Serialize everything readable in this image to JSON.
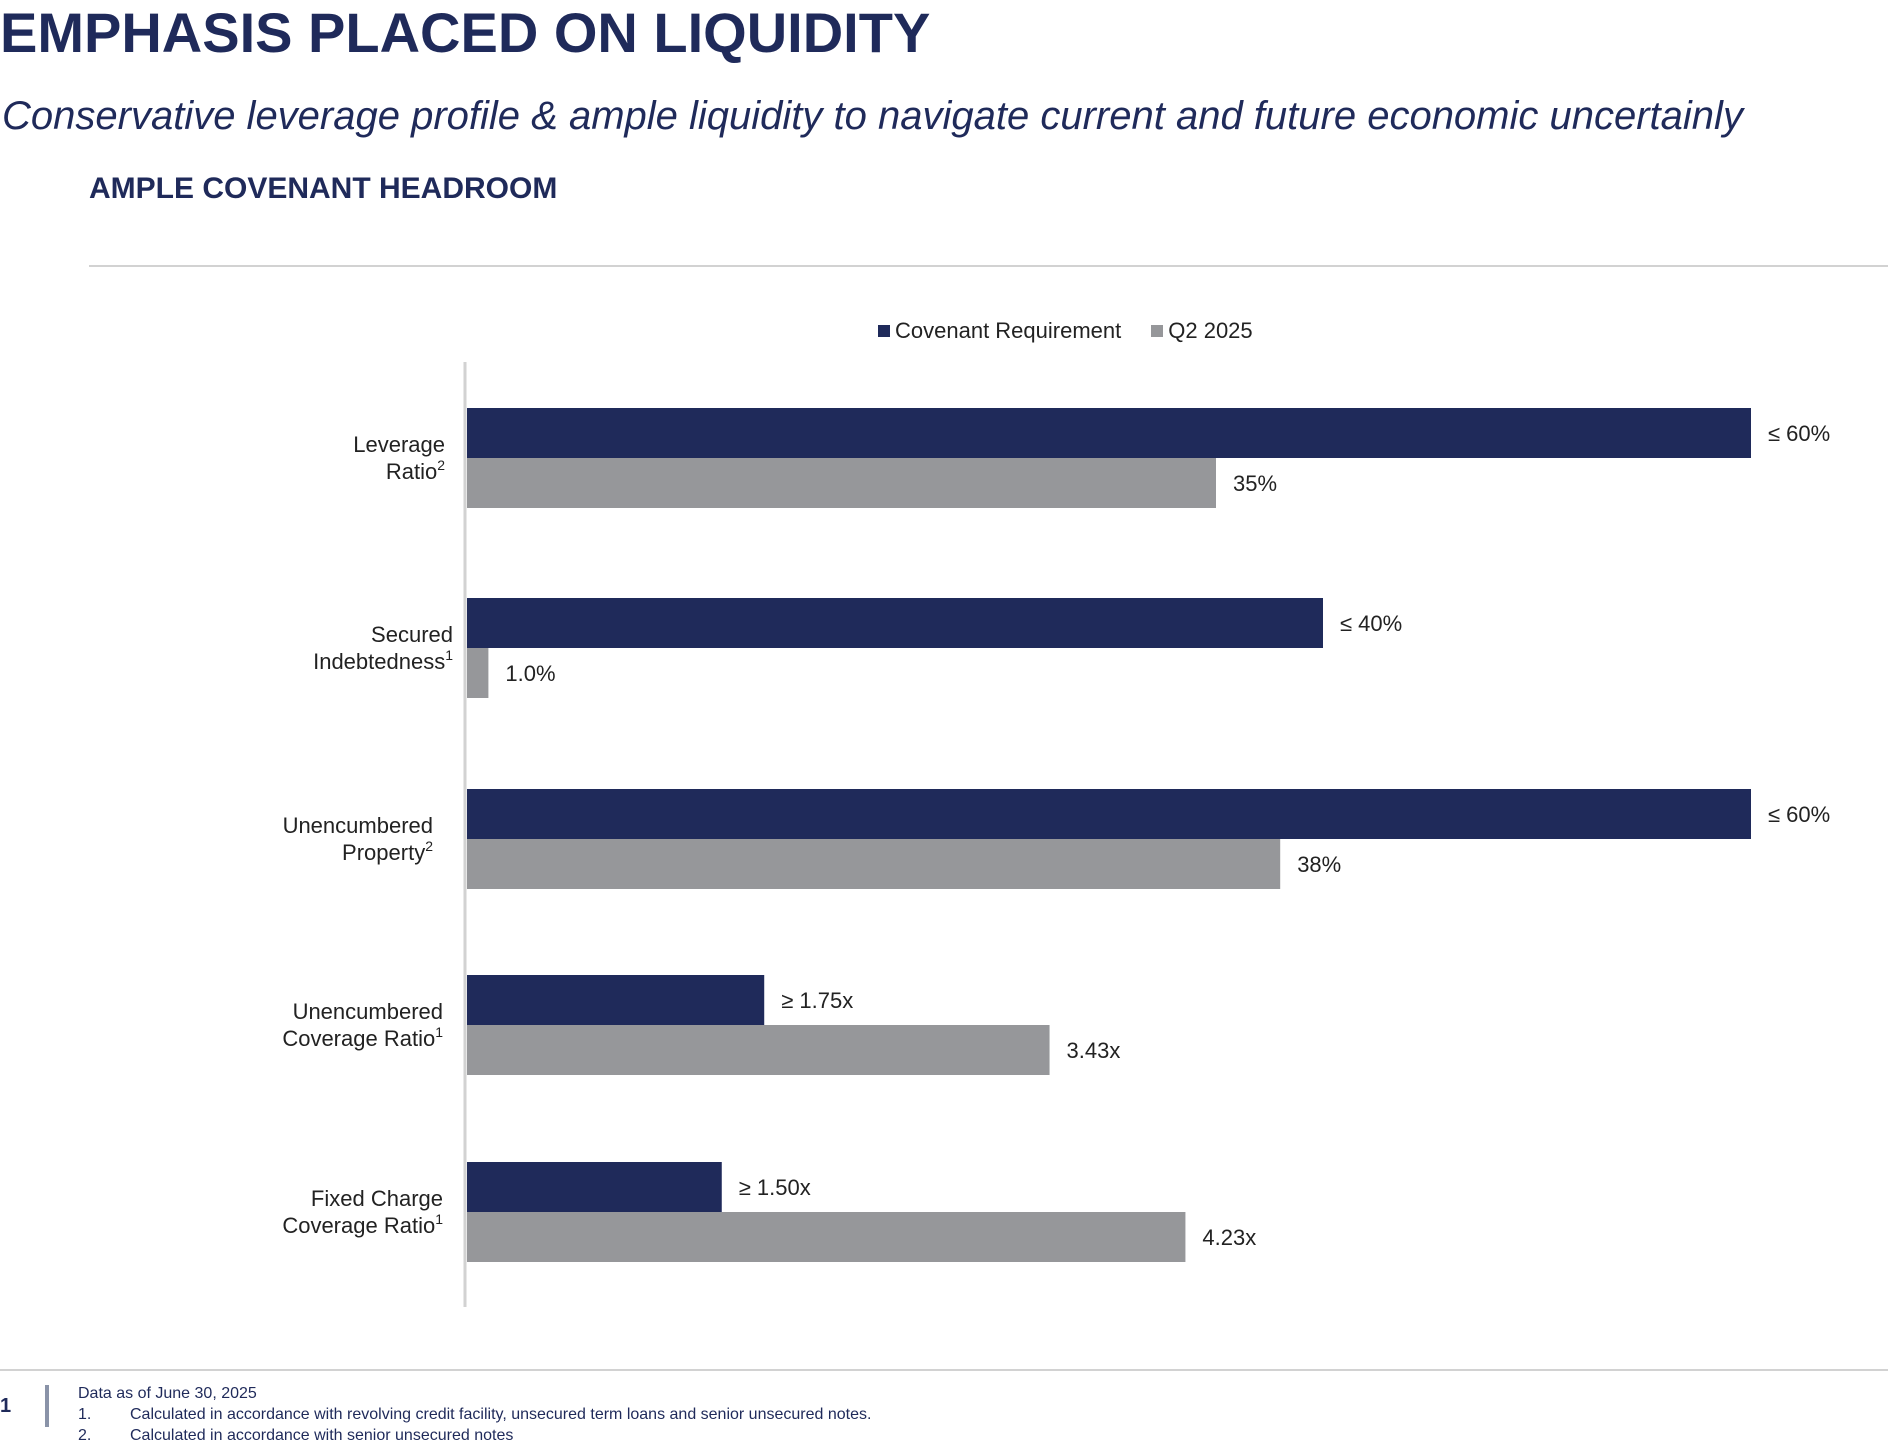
{
  "header": {
    "title": "EMPHASIS PLACED ON LIQUIDITY",
    "subtitle": "Conservative leverage profile & ample liquidity to navigate current and future economic uncertainly",
    "section_title": "AMPLE COVENANT HEADROOM"
  },
  "colors": {
    "navy": "#1f2a5a",
    "gray": "#96979a"
  },
  "chart_data": {
    "type": "bar",
    "orientation": "horizontal",
    "legend": [
      "Covenant Requirement",
      "Q2 2025"
    ],
    "categories": [
      {
        "lines": [
          "Leverage",
          "Ratio"
        ],
        "footnote": "2"
      },
      {
        "lines": [
          "Secured",
          "Indebtedness"
        ],
        "footnote": "1"
      },
      {
        "lines": [
          "Unencumbered",
          "Property"
        ],
        "footnote": "2"
      },
      {
        "lines": [
          "Unencumbered",
          "Coverage Ratio"
        ],
        "footnote": "1"
      },
      {
        "lines": [
          "Fixed Charge",
          "Coverage Ratio"
        ],
        "footnote": "1"
      }
    ],
    "series": [
      {
        "name": "Covenant Requirement",
        "color": "#1f2a5a",
        "values": [
          60,
          40,
          60,
          1.75,
          1.5
        ],
        "labels": [
          "≤ 60%",
          "≤ 40%",
          "≤ 60%",
          "≥ 1.75x",
          "≥ 1.50x"
        ]
      },
      {
        "name": "Q2 2025",
        "color": "#96979a",
        "values": [
          35,
          1.0,
          38,
          3.43,
          4.23
        ],
        "labels": [
          "35%",
          "1.0%",
          "38%",
          "3.43x",
          "4.23x"
        ]
      }
    ],
    "scales": [
      {
        "unit": "%",
        "max": 60
      },
      {
        "unit": "%",
        "max": 60
      },
      {
        "unit": "%",
        "max": 60
      },
      {
        "unit": "x",
        "max": 7.56
      },
      {
        "unit": "x",
        "max": 7.56
      }
    ]
  },
  "footer": {
    "page_number": "1",
    "notes": [
      {
        "num": "",
        "text": "Data as of June 30, 2025"
      },
      {
        "num": "1.",
        "text": "Calculated in accordance with revolving credit facility, unsecured term loans and senior unsecured notes."
      },
      {
        "num": "2.",
        "text": "Calculated in accordance with senior unsecured notes"
      }
    ]
  }
}
